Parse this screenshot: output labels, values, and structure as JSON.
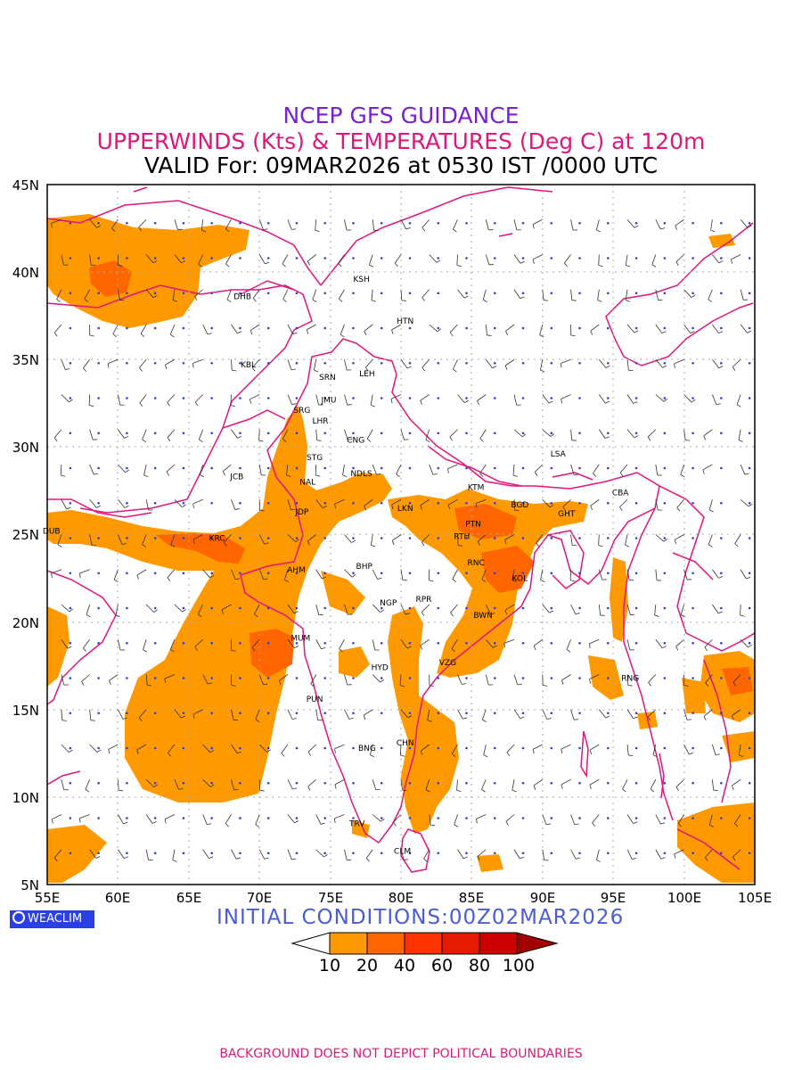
{
  "header": {
    "line1": "NCEP GFS GUIDANCE",
    "line2": "UPPERWINDS (Kts) & TEMPERATURES (Deg C) at 120m",
    "line3": "VALID For: 09MAR2026 at 0530 IST /0000 UTC"
  },
  "map": {
    "lat_labels": [
      "45N",
      "40N",
      "35N",
      "30N",
      "25N",
      "20N",
      "15N",
      "10N",
      "5N"
    ],
    "lon_labels": [
      "55E",
      "60E",
      "65E",
      "70E",
      "75E",
      "80E",
      "85E",
      "90E",
      "95E",
      "100E",
      "105E"
    ],
    "extent": {
      "lon_min": 55,
      "lon_max": 105,
      "lat_min": 5,
      "lat_max": 45
    },
    "colors": {
      "shade_10_20": "#ff9900",
      "shade_20_40": "#ff6600",
      "boundary": "#e0167a",
      "grid": "#aaaaaa",
      "temp_text": "#2f3fd6"
    },
    "cities": [
      {
        "label": "KSH",
        "lon": 77.2,
        "lat": 39.6
      },
      {
        "label": "DHB",
        "lon": 68.8,
        "lat": 38.6
      },
      {
        "label": "HTN",
        "lon": 80.3,
        "lat": 37.2
      },
      {
        "label": "KBL",
        "lon": 69.2,
        "lat": 34.7
      },
      {
        "label": "LEH",
        "lon": 77.6,
        "lat": 34.2
      },
      {
        "label": "SRN",
        "lon": 74.8,
        "lat": 34.0
      },
      {
        "label": "JMU",
        "lon": 74.9,
        "lat": 32.7
      },
      {
        "label": "SRG",
        "lon": 73.0,
        "lat": 32.1
      },
      {
        "label": "LHR",
        "lon": 74.3,
        "lat": 31.5
      },
      {
        "label": "CNG",
        "lon": 76.8,
        "lat": 30.4
      },
      {
        "label": "LSA",
        "lon": 91.1,
        "lat": 29.6
      },
      {
        "label": "STG",
        "lon": 73.9,
        "lat": 29.4
      },
      {
        "label": "JCB",
        "lon": 68.4,
        "lat": 28.3
      },
      {
        "label": "NDLS",
        "lon": 77.2,
        "lat": 28.5
      },
      {
        "label": "NAL",
        "lon": 73.4,
        "lat": 28.0
      },
      {
        "label": "KTM",
        "lon": 85.3,
        "lat": 27.7
      },
      {
        "label": "CBA",
        "lon": 95.5,
        "lat": 27.4
      },
      {
        "label": "BGD",
        "lon": 88.4,
        "lat": 26.7
      },
      {
        "label": "GHT",
        "lon": 91.7,
        "lat": 26.2
      },
      {
        "label": "LKN",
        "lon": 80.3,
        "lat": 26.5
      },
      {
        "label": "JDP",
        "lon": 73.0,
        "lat": 26.3
      },
      {
        "label": "PTN",
        "lon": 85.1,
        "lat": 25.6
      },
      {
        "label": "DUB",
        "lon": 55.3,
        "lat": 25.2
      },
      {
        "label": "KRC",
        "lon": 67.0,
        "lat": 24.8
      },
      {
        "label": "RTH",
        "lon": 84.3,
        "lat": 24.9
      },
      {
        "label": "AHM",
        "lon": 72.6,
        "lat": 23.0
      },
      {
        "label": "BHP",
        "lon": 77.4,
        "lat": 23.2
      },
      {
        "label": "RNC",
        "lon": 85.3,
        "lat": 23.4
      },
      {
        "label": "KOL",
        "lon": 88.4,
        "lat": 22.5
      },
      {
        "label": "NGP",
        "lon": 79.1,
        "lat": 21.1
      },
      {
        "label": "RPR",
        "lon": 81.6,
        "lat": 21.3
      },
      {
        "label": "BWN",
        "lon": 85.8,
        "lat": 20.4
      },
      {
        "label": "MUM",
        "lon": 72.9,
        "lat": 19.1
      },
      {
        "label": "HYD",
        "lon": 78.5,
        "lat": 17.4
      },
      {
        "label": "VZG",
        "lon": 83.3,
        "lat": 17.7
      },
      {
        "label": "RNG",
        "lon": 96.2,
        "lat": 16.8
      },
      {
        "label": "PUN",
        "lon": 73.9,
        "lat": 15.6
      },
      {
        "label": "CHN",
        "lon": 80.3,
        "lat": 13.1
      },
      {
        "label": "BNG",
        "lon": 77.6,
        "lat": 12.8
      },
      {
        "label": "TRV",
        "lon": 76.9,
        "lat": 8.5
      },
      {
        "label": "CLM",
        "lon": 80.1,
        "lat": 6.9
      }
    ]
  },
  "legend": {
    "labels": [
      "10",
      "20",
      "40",
      "60",
      "80",
      "100"
    ],
    "colors": [
      "#ffffff",
      "#ff9900",
      "#ff6600",
      "#ff3300",
      "#e61a00",
      "#cc0000",
      "#a30000"
    ]
  },
  "branding": {
    "logo_text": "WEACLIM"
  },
  "initial_conditions": "INITIAL CONDITIONS:00Z02MAR2026",
  "footer": "BACKGROUND DOES NOT DEPICT POLITICAL BOUNDARIES"
}
